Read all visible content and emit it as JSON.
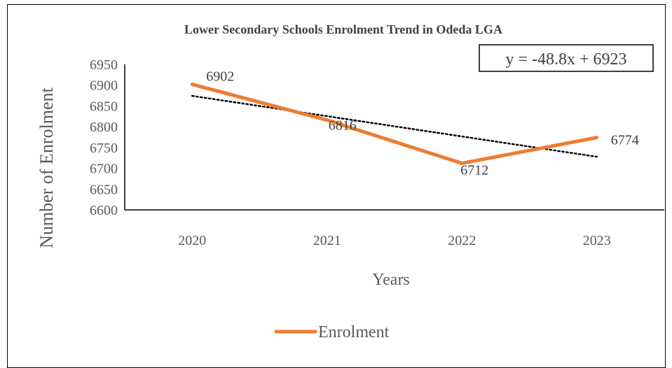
{
  "chart_data": {
    "type": "line",
    "title": "Lower Secondary Schools Enrolment Trend in Odeda LGA",
    "xlabel": "Years",
    "ylabel": "Number of Enrolment",
    "categories": [
      "2020",
      "2021",
      "2022",
      "2023"
    ],
    "series": [
      {
        "name": "Enrolment",
        "values": [
          6902,
          6816,
          6712,
          6774
        ],
        "color": "#ED7D31"
      }
    ],
    "data_labels": [
      "6902",
      "6816",
      "6712",
      "6774"
    ],
    "trendline": {
      "type": "linear",
      "equation": "y = -48.8x + 6923",
      "slope": -48.8,
      "intercept": 6923,
      "color": "#000000"
    },
    "ylim": [
      6600,
      6950
    ],
    "yticks": [
      "6600",
      "6650",
      "6700",
      "6750",
      "6800",
      "6850",
      "6900",
      "6950"
    ],
    "grid": false,
    "legend": "bottom"
  }
}
